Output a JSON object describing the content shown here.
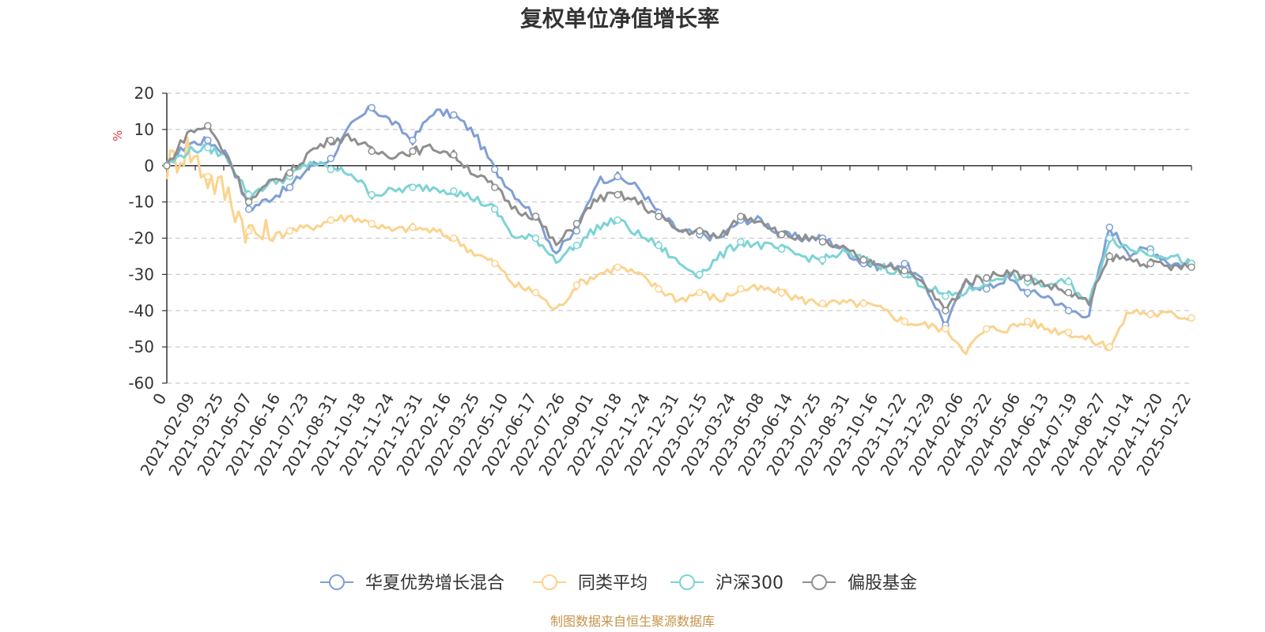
{
  "colors": {
    "series": [
      "#7f9fd5",
      "#fbd38e",
      "#7dd3d5",
      "#8f8f8f"
    ],
    "axis": "#333333",
    "grid": "#cccccc",
    "ylabel": "#e6383c",
    "source": "#c4954a"
  },
  "chart_data": {
    "type": "line",
    "title": "复权单位净值增长率",
    "ylabel": "%",
    "ylim": [
      -60,
      20
    ],
    "yticks": [
      "20",
      "10",
      "0",
      "-10",
      "-20",
      "-30",
      "-40",
      "-50",
      "-60"
    ],
    "xlabels": [
      "0",
      "2021-02-09",
      "2021-03-25",
      "2021-05-07",
      "2021-06-16",
      "2021-07-23",
      "2021-08-31",
      "2021-10-18",
      "2021-11-24",
      "2021-12-31",
      "2022-02-16",
      "2022-03-25",
      "2022-05-10",
      "2022-06-17",
      "2022-07-26",
      "2022-09-01",
      "2022-10-18",
      "2022-11-24",
      "2022-12-31",
      "2023-02-15",
      "2023-03-24",
      "2023-05-08",
      "2023-06-14",
      "2023-07-25",
      "2023-08-31",
      "2023-10-16",
      "2023-11-22",
      "2023-12-29",
      "2024-02-06",
      "2024-03-22",
      "2024-05-06",
      "2024-06-13",
      "2024-07-19",
      "2024-08-27",
      "2024-10-14",
      "2024-11-20",
      "2025-01-22"
    ],
    "xlabel_positions": [
      0,
      1,
      3,
      5,
      7,
      9,
      11,
      13,
      15,
      17,
      19,
      21,
      23,
      25,
      27,
      29,
      31,
      33,
      35,
      37,
      39,
      41,
      43,
      45,
      47,
      49,
      51,
      53,
      55,
      57,
      59,
      61,
      63,
      65,
      67,
      69,
      72
    ],
    "n_ticks": 37,
    "series": [
      {
        "name": "华夏优势增长混合",
        "values": [
          0,
          6,
          7,
          3,
          -12,
          -9,
          -6,
          0,
          2,
          11,
          16,
          12,
          7,
          15,
          14,
          9,
          -1,
          -8,
          -14,
          -24,
          -18,
          -4,
          -3,
          -6,
          -13,
          -18,
          -19,
          -20,
          -15,
          -15,
          -19,
          -20,
          -20,
          -23,
          -27,
          -28,
          -27,
          -33,
          -44,
          -32,
          -34,
          -31,
          -35,
          -36,
          -40,
          -41,
          -17,
          -24,
          -23,
          -27,
          -27
        ]
      },
      {
        "name": "同类平均",
        "values": [
          0,
          5,
          -3,
          -8,
          -18,
          -20,
          -18,
          -17,
          -15,
          -14,
          -16,
          -18,
          -17,
          -18,
          -20,
          -24,
          -27,
          -33,
          -35,
          -40,
          -33,
          -30,
          -28,
          -30,
          -34,
          -37,
          -35,
          -37,
          -34,
          -34,
          -35,
          -37,
          -38,
          -38,
          -38,
          -40,
          -43,
          -44,
          -45,
          -51,
          -45,
          -45,
          -43,
          -45,
          -46,
          -48,
          -50,
          -40,
          -41,
          -41,
          -42
        ]
      },
      {
        "name": "沪深300",
        "values": [
          0,
          4,
          5,
          2,
          -8,
          -5,
          -3,
          1,
          -1,
          -2,
          -8,
          -7,
          -6,
          -6,
          -7,
          -9,
          -12,
          -20,
          -20,
          -26,
          -22,
          -17,
          -15,
          -19,
          -22,
          -27,
          -30,
          -25,
          -21,
          -22,
          -23,
          -25,
          -26,
          -24,
          -26,
          -28,
          -30,
          -33,
          -36,
          -35,
          -32,
          -30,
          -32,
          -33,
          -32,
          -38,
          -20,
          -23,
          -24,
          -25,
          -27
        ]
      },
      {
        "name": "偏股基金",
        "values": [
          0,
          9,
          11,
          2,
          -10,
          -5,
          -2,
          4,
          7,
          8,
          4,
          3,
          4,
          5,
          3,
          -2,
          -6,
          -12,
          -14,
          -22,
          -16,
          -9,
          -8,
          -10,
          -14,
          -18,
          -18,
          -20,
          -14,
          -15,
          -19,
          -20,
          -21,
          -23,
          -26,
          -27,
          -29,
          -33,
          -40,
          -32,
          -31,
          -29,
          -31,
          -33,
          -35,
          -38,
          -25,
          -26,
          -27,
          -28,
          -28
        ]
      }
    ]
  },
  "legend": {
    "items": [
      "华夏优势增长混合",
      "同类平均",
      "沪深300",
      "偏股基金"
    ]
  },
  "source_text": "制图数据来自恒生聚源数据库"
}
